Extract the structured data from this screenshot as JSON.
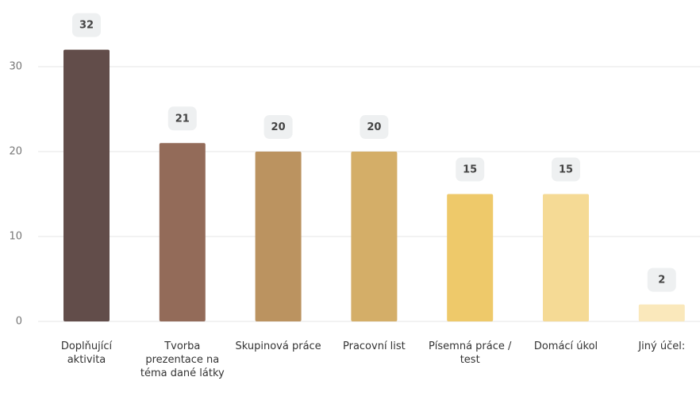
{
  "chart_data": {
    "type": "bar",
    "categories": [
      "Doplňující aktivita",
      "Tvorba prezentace na téma dané látky",
      "Skupinová práce",
      "Pracovní list",
      "Písemná práce / test",
      "Domácí úkol",
      "Jiný účel:"
    ],
    "values": [
      32,
      21,
      20,
      20,
      15,
      15,
      2
    ],
    "colors": [
      "#624d4a",
      "#936b59",
      "#bb9360",
      "#d4ae68",
      "#eec96a",
      "#f5da95",
      "#fae8bb"
    ],
    "ylim": [
      0,
      35
    ],
    "yticks": [
      0,
      10,
      20,
      30
    ],
    "grid": true
  }
}
